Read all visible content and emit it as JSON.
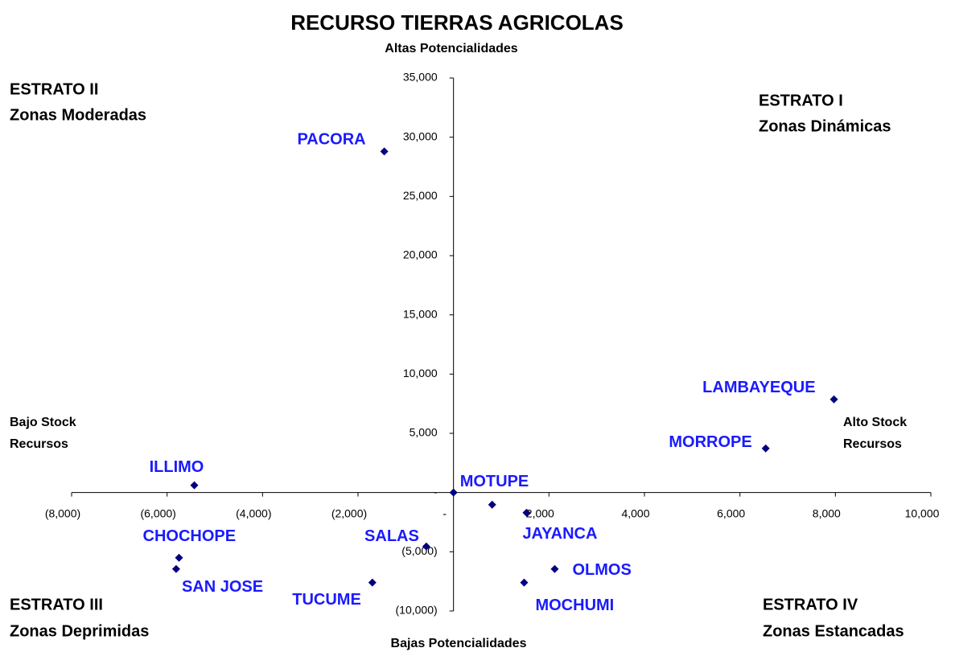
{
  "chart_data": {
    "type": "scatter",
    "title": "RECURSO TIERRAS AGRICOLAS",
    "y_top_label": "Altas Potencialidades",
    "y_bottom_label": "Bajas Potencialidades",
    "x_left_label": [
      "Bajo Stock",
      "Recursos"
    ],
    "x_right_label": [
      "Alto Stock",
      "Recursos"
    ],
    "quadrants": {
      "top_left": [
        "ESTRATO II",
        "Zonas Moderadas"
      ],
      "top_right": [
        "ESTRATO I",
        "Zonas Dinámicas"
      ],
      "bottom_left": [
        "ESTRATO III",
        "Zonas Deprimidas"
      ],
      "bottom_right": [
        "ESTRATO IV",
        "Zonas Estancadas"
      ]
    },
    "color": "#000080",
    "label_color": "#1a1aff",
    "labels": [
      "PACORA",
      "LAMBAYEQUE",
      "MORROPE",
      "ILLIMO",
      "MOTUPE",
      "JAYANCA",
      "OLMOS",
      "MOCHUMI",
      "SALAS",
      "TUCUME",
      "SAN JOSE",
      "CHOCHOPE",
      null
    ],
    "x": [
      -1450,
      7970,
      6540,
      -5430,
      810,
      1530,
      2120,
      1480,
      -570,
      -1700,
      -5810,
      -5750,
      0
    ],
    "values": [
      28800,
      7870,
      3730,
      610,
      -1020,
      -1700,
      -6450,
      -7600,
      -4550,
      -7600,
      -6450,
      -5500,
      0
    ],
    "xlim": [
      -8000,
      10000
    ],
    "xticks": [
      {
        "value": -8000,
        "label": "(8,000)"
      },
      {
        "value": -6000,
        "label": "(6,000)"
      },
      {
        "value": -4000,
        "label": "(4,000)"
      },
      {
        "value": -2000,
        "label": "(2,000)"
      },
      {
        "value": 0,
        "label": "-"
      },
      {
        "value": 2000,
        "label": "2,000"
      },
      {
        "value": 4000,
        "label": "4,000"
      },
      {
        "value": 6000,
        "label": "6,000"
      },
      {
        "value": 8000,
        "label": "8,000"
      },
      {
        "value": 10000,
        "label": "10,000"
      }
    ],
    "ylim": [
      -10000,
      35000
    ],
    "yticks": [
      {
        "value": -10000,
        "label": "(10,000)"
      },
      {
        "value": -5000,
        "label": "(5,000)"
      },
      {
        "value": 0,
        "label": "-"
      },
      {
        "value": 5000,
        "label": "5,000"
      },
      {
        "value": 10000,
        "label": "10,000"
      },
      {
        "value": 15000,
        "label": "15,000"
      },
      {
        "value": 20000,
        "label": "20,000"
      },
      {
        "value": 25000,
        "label": "25,000"
      },
      {
        "value": 30000,
        "label": "30,000"
      },
      {
        "value": 35000,
        "label": "35,000"
      }
    ]
  }
}
